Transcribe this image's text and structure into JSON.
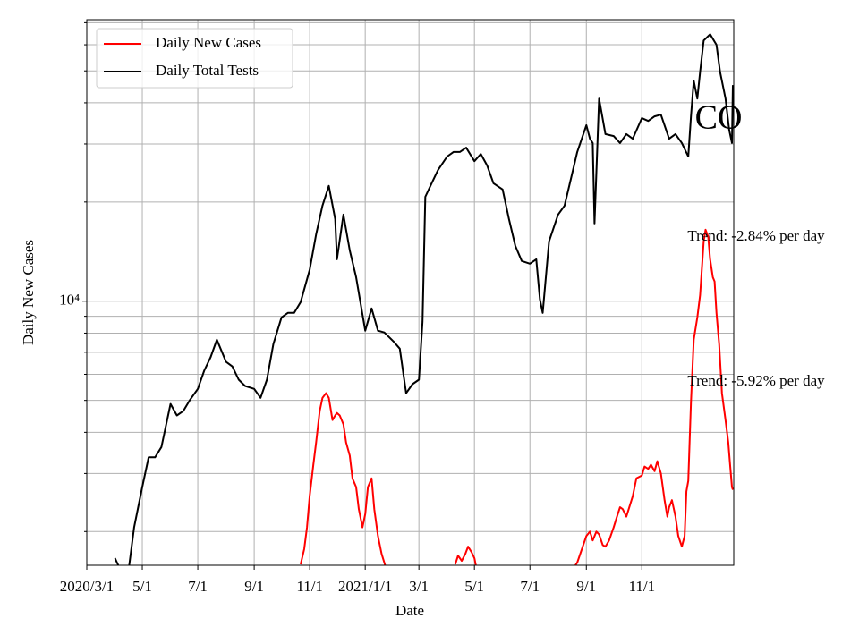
{
  "chart_data": {
    "type": "line",
    "title": "CO",
    "x_label": "Date",
    "y_label": "Daily New Cases",
    "log_y": true,
    "grid": true,
    "legend": "upper left",
    "annotations": [
      "Trend: -2.84% per day",
      "Trend: -5.92% per day"
    ],
    "xlim": [
      "2020-03-01",
      "2022-02-10"
    ],
    "xticks": [
      {
        "value": "2020-03-01",
        "label": "2020/3/1"
      },
      {
        "value": "2020-05-01",
        "label": "5/1"
      },
      {
        "value": "2020-07-01",
        "label": "7/1"
      },
      {
        "value": "2020-09-01",
        "label": "9/1"
      },
      {
        "value": "2020-11-01",
        "label": "11/1"
      },
      {
        "value": "2021-01-01",
        "label": "2021/1/1"
      },
      {
        "value": "2021-03-01",
        "label": "3/1"
      },
      {
        "value": "2021-05-01",
        "label": "5/1"
      },
      {
        "value": "2021-07-01",
        "label": "7/1"
      },
      {
        "value": "2021-09-01",
        "label": "9/1"
      },
      {
        "value": "2021-11-01",
        "label": "11/1"
      }
    ],
    "ylim": [
      1580,
      71500
    ],
    "yticks": [
      {
        "value": 10000,
        "label": "10⁴"
      }
    ],
    "yticks_minor": [
      2000,
      3000,
      4000,
      5000,
      6000,
      7000,
      8000,
      9000,
      20000,
      30000,
      40000,
      50000,
      60000,
      70000
    ],
    "series": [
      {
        "name": "Daily New Cases",
        "color": "#ff0000",
        "x": [
          "2020-10-22",
          "2020-10-26",
          "2020-10-29",
          "2020-11-01",
          "2020-11-05",
          "2020-11-08",
          "2020-11-12",
          "2020-11-15",
          "2020-11-19",
          "2020-11-22",
          "2020-11-26",
          "2020-11-29",
          "2020-12-01",
          "2020-12-04",
          "2020-12-08",
          "2020-12-11",
          "2020-12-15",
          "2020-12-18",
          "2020-12-22",
          "2020-12-25",
          "2020-12-29",
          "2021-01-01",
          "2021-01-04",
          "2021-01-08",
          "2021-01-11",
          "2021-01-15",
          "2021-01-19",
          "2021-01-22",
          "2021-01-25",
          "2021-03-01",
          "2021-04-10",
          "2021-04-13",
          "2021-04-17",
          "2021-04-21",
          "2021-04-24",
          "2021-04-28",
          "2021-05-01",
          "2021-05-04",
          "2021-06-15",
          "2021-08-15",
          "2021-08-22",
          "2021-09-01",
          "2021-09-05",
          "2021-09-08",
          "2021-09-12",
          "2021-09-15",
          "2021-09-19",
          "2021-09-22",
          "2021-09-26",
          "2021-10-01",
          "2021-10-04",
          "2021-10-08",
          "2021-10-11",
          "2021-10-15",
          "2021-10-19",
          "2021-10-22",
          "2021-10-26",
          "2021-11-01",
          "2021-11-04",
          "2021-11-08",
          "2021-11-11",
          "2021-11-15",
          "2021-11-18",
          "2021-11-22",
          "2021-11-26",
          "2021-11-29",
          "2021-12-01",
          "2021-12-04",
          "2021-12-08",
          "2021-12-11",
          "2021-12-15",
          "2021-12-18",
          "2021-12-20",
          "2021-12-22",
          "2021-12-25",
          "2021-12-28",
          "2022-01-01",
          "2022-01-04",
          "2022-01-06",
          "2022-01-08",
          "2022-01-10",
          "2022-01-13",
          "2022-01-15",
          "2022-01-18",
          "2022-01-20",
          "2022-01-22",
          "2022-01-25",
          "2022-01-28",
          "2022-02-01",
          "2022-02-04",
          "2022-02-06",
          "2022-02-08",
          "2022-02-09"
        ],
        "values": [
          1590,
          1770,
          2060,
          2560,
          3190,
          3730,
          4640,
          5090,
          5260,
          5090,
          4360,
          4500,
          4580,
          4500,
          4230,
          3730,
          3400,
          2900,
          2730,
          2340,
          2060,
          2260,
          2730,
          2900,
          2340,
          1940,
          1710,
          1610,
          1510,
          null,
          1590,
          1690,
          1630,
          1710,
          1800,
          1730,
          1660,
          1510,
          null,
          1510,
          1610,
          1940,
          2000,
          1880,
          2000,
          1960,
          1820,
          1800,
          1880,
          2060,
          2190,
          2370,
          2340,
          2220,
          2410,
          2560,
          2900,
          2960,
          3150,
          3100,
          3190,
          3050,
          3270,
          3000,
          2490,
          2220,
          2370,
          2490,
          2220,
          1940,
          1800,
          1940,
          2650,
          2850,
          4940,
          7640,
          8930,
          10440,
          12590,
          15200,
          16480,
          15670,
          13400,
          11830,
          11470,
          9220,
          7410,
          5260,
          4360,
          3730,
          3190,
          2730,
          2680
        ]
      },
      {
        "name": "Daily Total Tests",
        "color": "#000000",
        "x": [
          "2020-04-01",
          "2020-04-08",
          "2020-04-15",
          "2020-04-22",
          "2020-05-01",
          "2020-05-08",
          "2020-05-15",
          "2020-05-22",
          "2020-06-01",
          "2020-06-08",
          "2020-06-15",
          "2020-06-22",
          "2020-07-01",
          "2020-07-08",
          "2020-07-15",
          "2020-07-22",
          "2020-08-01",
          "2020-08-08",
          "2020-08-15",
          "2020-08-22",
          "2020-09-01",
          "2020-09-08",
          "2020-09-15",
          "2020-09-22",
          "2020-10-01",
          "2020-10-08",
          "2020-10-15",
          "2020-10-22",
          "2020-11-01",
          "2020-11-08",
          "2020-11-15",
          "2020-11-22",
          "2020-11-29",
          "2020-12-01",
          "2020-12-08",
          "2020-12-15",
          "2020-12-22",
          "2021-01-01",
          "2021-01-08",
          "2021-01-15",
          "2021-01-22",
          "2021-02-01",
          "2021-02-08",
          "2021-02-15",
          "2021-02-22",
          "2021-03-01",
          "2021-03-05",
          "2021-03-08",
          "2021-03-15",
          "2021-03-22",
          "2021-04-01",
          "2021-04-08",
          "2021-04-15",
          "2021-04-22",
          "2021-05-01",
          "2021-05-08",
          "2021-05-15",
          "2021-05-22",
          "2021-06-01",
          "2021-06-08",
          "2021-06-15",
          "2021-06-22",
          "2021-07-01",
          "2021-07-08",
          "2021-07-12",
          "2021-07-15",
          "2021-07-22",
          "2021-08-01",
          "2021-08-08",
          "2021-08-15",
          "2021-08-22",
          "2021-09-01",
          "2021-09-05",
          "2021-09-08",
          "2021-09-10",
          "2021-09-15",
          "2021-09-22",
          "2021-10-01",
          "2021-10-08",
          "2021-10-15",
          "2021-10-22",
          "2021-11-01",
          "2021-11-08",
          "2021-11-15",
          "2021-11-22",
          "2021-12-01",
          "2021-12-08",
          "2021-12-15",
          "2021-12-22",
          "2021-12-25",
          "2021-12-28",
          "2022-01-01",
          "2022-01-04",
          "2022-01-08",
          "2022-01-15",
          "2022-01-22",
          "2022-01-26",
          "2022-02-01",
          "2022-02-05",
          "2022-02-08",
          "2022-02-09"
        ],
        "values": [
          1660,
          1510,
          1460,
          2060,
          2730,
          3360,
          3360,
          3610,
          4880,
          4500,
          4640,
          5000,
          5420,
          6150,
          6750,
          7640,
          6550,
          6340,
          5780,
          5530,
          5420,
          5090,
          5780,
          7410,
          8930,
          9220,
          9220,
          9940,
          12450,
          15960,
          19500,
          22390,
          17750,
          13400,
          18320,
          14260,
          11830,
          8140,
          9510,
          8140,
          8040,
          7550,
          7180,
          5260,
          5600,
          5780,
          8670,
          20750,
          22800,
          25000,
          27480,
          28380,
          28380,
          29240,
          26610,
          27990,
          25820,
          22800,
          21830,
          17750,
          14720,
          13240,
          13000,
          13400,
          10120,
          9220,
          15200,
          18320,
          19500,
          23500,
          28380,
          34200,
          31120,
          30200,
          17220,
          41210,
          32140,
          31700,
          30200,
          32140,
          31120,
          35940,
          35240,
          36390,
          36810,
          31120,
          32140,
          30200,
          27480,
          36390,
          46670,
          41210,
          49660,
          61800,
          64570,
          59980,
          49660,
          41210,
          33110,
          30200,
          45290
        ]
      }
    ]
  }
}
